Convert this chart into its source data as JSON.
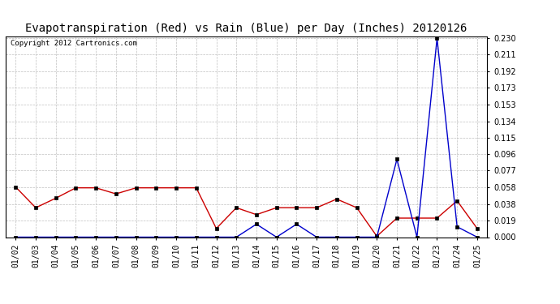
{
  "title": "Evapotranspiration (Red) vs Rain (Blue) per Day (Inches) 20120126",
  "copyright": "Copyright 2012 Cartronics.com",
  "dates": [
    "01/02",
    "01/03",
    "01/04",
    "01/05",
    "01/06",
    "01/07",
    "01/08",
    "01/09",
    "01/10",
    "01/11",
    "01/12",
    "01/13",
    "01/14",
    "01/15",
    "01/16",
    "01/17",
    "01/18",
    "01/19",
    "01/20",
    "01/21",
    "01/22",
    "01/23",
    "01/24",
    "01/25"
  ],
  "red_values": [
    0.058,
    0.034,
    0.045,
    0.057,
    0.057,
    0.05,
    0.057,
    0.057,
    0.057,
    0.057,
    0.01,
    0.034,
    0.026,
    0.034,
    0.034,
    0.034,
    0.044,
    0.034,
    0.001,
    0.022,
    0.022,
    0.022,
    0.042,
    0.01
  ],
  "blue_values": [
    0.0,
    0.0,
    0.0,
    0.0,
    0.0,
    0.0,
    0.0,
    0.0,
    0.0,
    0.0,
    0.0,
    0.0,
    0.015,
    0.0,
    0.015,
    0.0,
    0.0,
    0.0,
    0.0,
    0.09,
    0.0,
    0.23,
    0.012,
    0.0
  ],
  "red_color": "#cc0000",
  "blue_color": "#0000cc",
  "background_color": "#ffffff",
  "grid_color": "#c0c0c0",
  "ylim": [
    0.0,
    0.232
  ],
  "yticks": [
    0.0,
    0.019,
    0.038,
    0.058,
    0.077,
    0.096,
    0.115,
    0.134,
    0.153,
    0.173,
    0.192,
    0.211,
    0.23
  ],
  "title_fontsize": 10,
  "copyright_fontsize": 6.5,
  "tick_fontsize": 7
}
